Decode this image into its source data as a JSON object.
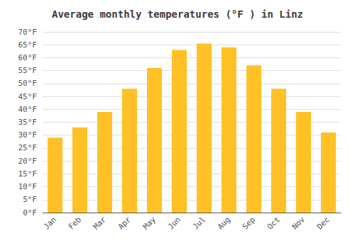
{
  "chart_data": {
    "type": "bar",
    "title": "Average monthly temperatures (°F ) in Linz",
    "categories": [
      "Jan",
      "Feb",
      "Mar",
      "Apr",
      "May",
      "Jun",
      "Jul",
      "Aug",
      "Sep",
      "Oct",
      "Nov",
      "Dec"
    ],
    "values": [
      29,
      33,
      39,
      48,
      56,
      63,
      65.5,
      64,
      57,
      48,
      39,
      31
    ],
    "color": "#FFC125",
    "ylim": [
      0,
      70
    ],
    "yticks": [
      {
        "value": 0,
        "label": "0°F"
      },
      {
        "value": 5,
        "label": "5°F"
      },
      {
        "value": 10,
        "label": "10°F"
      },
      {
        "value": 15,
        "label": "15°F"
      },
      {
        "value": 20,
        "label": "20°F"
      },
      {
        "value": 25,
        "label": "25°F"
      },
      {
        "value": 30,
        "label": "30°F"
      },
      {
        "value": 35,
        "label": "35°F"
      },
      {
        "value": 40,
        "label": "40°F"
      },
      {
        "value": 45,
        "label": "45°F"
      },
      {
        "value": 50,
        "label": "50°F"
      },
      {
        "value": 55,
        "label": "55°F"
      },
      {
        "value": 60,
        "label": "60°F"
      },
      {
        "value": 65,
        "label": "65°F"
      },
      {
        "value": 70,
        "label": "70°F"
      }
    ],
    "grid": true
  }
}
